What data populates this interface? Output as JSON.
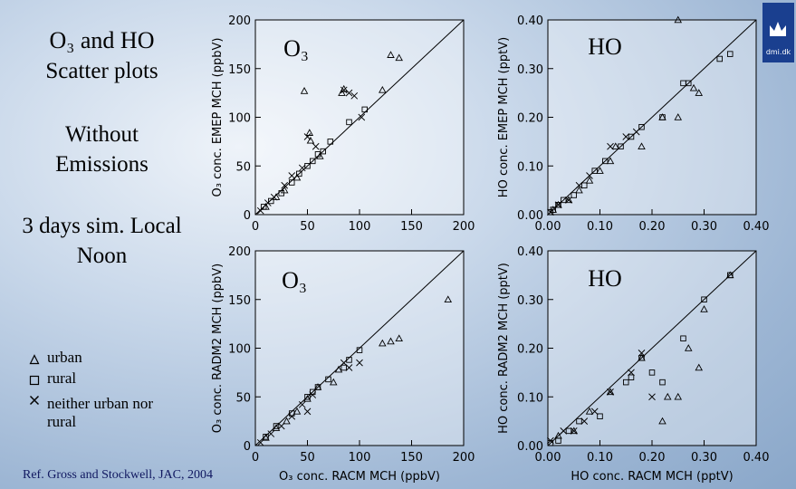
{
  "slide": {
    "title": "O₃ and HO",
    "subtitle": "Scatter plots",
    "condition": "Without Emissions",
    "simulation": "3 days sim. Local Noon",
    "reference": "Ref. Gross and Stockwell, JAC, 2004",
    "logo": "dmi.dk"
  },
  "chart_data": [
    {
      "type": "scatter",
      "label": "O₃",
      "ylabel": "O₃ conc. EMEP MCH (ppbV)",
      "xlim": [
        0,
        200
      ],
      "ylim": [
        0,
        200
      ],
      "xticks": [
        0,
        50,
        100,
        150,
        200
      ],
      "yticks": [
        0,
        50,
        100,
        150,
        200
      ],
      "series": [
        {
          "name": "urban",
          "marker": "triangle",
          "color": "#000000",
          "x": [
            10,
            20,
            28,
            40,
            47,
            52,
            53,
            62,
            83,
            85,
            122,
            130,
            138
          ],
          "values": [
            8,
            18,
            25,
            38,
            127,
            84,
            76,
            60,
            125,
            129,
            128,
            164,
            161
          ]
        },
        {
          "name": "rural",
          "marker": "square",
          "color": "#000000",
          "x": [
            8,
            15,
            25,
            35,
            42,
            50,
            55,
            60,
            65,
            72,
            90,
            105
          ],
          "values": [
            8,
            14,
            22,
            33,
            42,
            50,
            55,
            62,
            65,
            75,
            95,
            108
          ]
        },
        {
          "name": "neither urban nor rural",
          "marker": "cross",
          "color": "#000000",
          "x": [
            5,
            12,
            18,
            28,
            35,
            45,
            50,
            58,
            85,
            90,
            95,
            102
          ],
          "values": [
            4,
            12,
            18,
            30,
            40,
            48,
            80,
            70,
            128,
            125,
            122,
            100
          ]
        }
      ]
    },
    {
      "type": "scatter",
      "label": "HO",
      "ylabel": "HO conc. EMEP MCH (pptV)",
      "xlim": [
        0,
        0.4
      ],
      "ylim": [
        0,
        0.4
      ],
      "xticks": [
        {
          "value": 0,
          "label": "0.00"
        },
        {
          "value": 0.1,
          "label": "0.10"
        },
        {
          "value": 0.2,
          "label": "0.20"
        },
        {
          "value": 0.3,
          "label": "0.30"
        },
        {
          "value": 0.4,
          "label": "0.40"
        }
      ],
      "yticks": [
        {
          "value": 0,
          "label": "0.00"
        },
        {
          "value": 0.1,
          "label": "0.10"
        },
        {
          "value": 0.2,
          "label": "0.20"
        },
        {
          "value": 0.3,
          "label": "0.30"
        },
        {
          "value": 0.4,
          "label": "0.40"
        }
      ],
      "series": [
        {
          "name": "urban",
          "marker": "triangle",
          "color": "#000000",
          "x": [
            0.01,
            0.02,
            0.04,
            0.06,
            0.08,
            0.1,
            0.12,
            0.13,
            0.18,
            0.22,
            0.25,
            0.28,
            0.29,
            0.25
          ],
          "values": [
            0.01,
            0.02,
            0.03,
            0.05,
            0.07,
            0.09,
            0.11,
            0.14,
            0.14,
            0.2,
            0.2,
            0.26,
            0.25,
            0.4
          ]
        },
        {
          "name": "rural",
          "marker": "square",
          "color": "#000000",
          "x": [
            0.005,
            0.01,
            0.02,
            0.03,
            0.05,
            0.07,
            0.09,
            0.11,
            0.14,
            0.16,
            0.18,
            0.22,
            0.26,
            0.27,
            0.33,
            0.35
          ],
          "values": [
            0.005,
            0.01,
            0.02,
            0.03,
            0.04,
            0.06,
            0.09,
            0.11,
            0.14,
            0.16,
            0.18,
            0.2,
            0.27,
            0.27,
            0.32,
            0.33
          ]
        },
        {
          "name": "neither urban nor rural",
          "marker": "cross",
          "color": "#000000",
          "x": [
            0.005,
            0.02,
            0.04,
            0.06,
            0.08,
            0.12,
            0.15,
            0.17
          ],
          "values": [
            0.005,
            0.02,
            0.03,
            0.06,
            0.08,
            0.14,
            0.16,
            0.17
          ]
        }
      ]
    },
    {
      "type": "scatter",
      "label": "O₃",
      "xlabel": "O₃ conc. RACM MCH (ppbV)",
      "ylabel": "O₃ conc. RADM2 MCH (ppbV)",
      "xlim": [
        0,
        200
      ],
      "ylim": [
        0,
        200
      ],
      "xticks": [
        0,
        50,
        100,
        150,
        200
      ],
      "yticks": [
        0,
        50,
        100,
        150,
        200
      ],
      "series": [
        {
          "name": "urban",
          "marker": "triangle",
          "color": "#000000",
          "x": [
            10,
            20,
            30,
            40,
            50,
            60,
            75,
            80,
            122,
            130,
            138,
            185
          ],
          "values": [
            8,
            18,
            25,
            35,
            48,
            60,
            65,
            78,
            105,
            107,
            110,
            150
          ]
        },
        {
          "name": "rural",
          "marker": "square",
          "color": "#000000",
          "x": [
            10,
            20,
            35,
            50,
            55,
            60,
            70,
            85,
            90,
            100
          ],
          "values": [
            9,
            20,
            33,
            50,
            55,
            60,
            68,
            80,
            88,
            98
          ]
        },
        {
          "name": "neither urban nor rural",
          "marker": "cross",
          "color": "#000000",
          "x": [
            5,
            15,
            25,
            35,
            45,
            50,
            55,
            85,
            90,
            100
          ],
          "values": [
            3,
            12,
            20,
            30,
            42,
            35,
            52,
            85,
            80,
            85
          ]
        }
      ]
    },
    {
      "type": "scatter",
      "label": "HO",
      "xlabel": "HO conc. RACM MCH (pptV)",
      "ylabel": "HO conc. RADM2 MCH (pptV)",
      "xlim": [
        0,
        0.4
      ],
      "ylim": [
        0,
        0.4
      ],
      "xticks": [
        {
          "value": 0,
          "label": "0.00"
        },
        {
          "value": 0.1,
          "label": "0.10"
        },
        {
          "value": 0.2,
          "label": "0.20"
        },
        {
          "value": 0.3,
          "label": "0.30"
        },
        {
          "value": 0.4,
          "label": "0.40"
        }
      ],
      "yticks": [
        {
          "value": 0,
          "label": "0.00"
        },
        {
          "value": 0.1,
          "label": "0.10"
        },
        {
          "value": 0.2,
          "label": "0.20"
        },
        {
          "value": 0.3,
          "label": "0.30"
        },
        {
          "value": 0.4,
          "label": "0.40"
        }
      ],
      "series": [
        {
          "name": "urban",
          "marker": "triangle",
          "color": "#000000",
          "x": [
            0.02,
            0.05,
            0.08,
            0.12,
            0.18,
            0.22,
            0.23,
            0.25,
            0.27,
            0.29,
            0.3,
            0.35
          ],
          "values": [
            0.02,
            0.03,
            0.07,
            0.11,
            0.18,
            0.05,
            0.1,
            0.1,
            0.2,
            0.16,
            0.28,
            0.35
          ]
        },
        {
          "name": "rural",
          "marker": "square",
          "color": "#000000",
          "x": [
            0.005,
            0.02,
            0.04,
            0.06,
            0.1,
            0.15,
            0.16,
            0.18,
            0.2,
            0.22,
            0.26,
            0.3,
            0.35
          ],
          "values": [
            0.005,
            0.01,
            0.03,
            0.05,
            0.06,
            0.13,
            0.14,
            0.18,
            0.15,
            0.13,
            0.22,
            0.3,
            0.35
          ]
        },
        {
          "name": "neither urban nor rural",
          "marker": "cross",
          "color": "#000000",
          "x": [
            0.005,
            0.03,
            0.05,
            0.07,
            0.09,
            0.12,
            0.16,
            0.18,
            0.2
          ],
          "values": [
            0.01,
            0.03,
            0.03,
            0.05,
            0.07,
            0.11,
            0.15,
            0.19,
            0.1
          ]
        }
      ]
    }
  ]
}
